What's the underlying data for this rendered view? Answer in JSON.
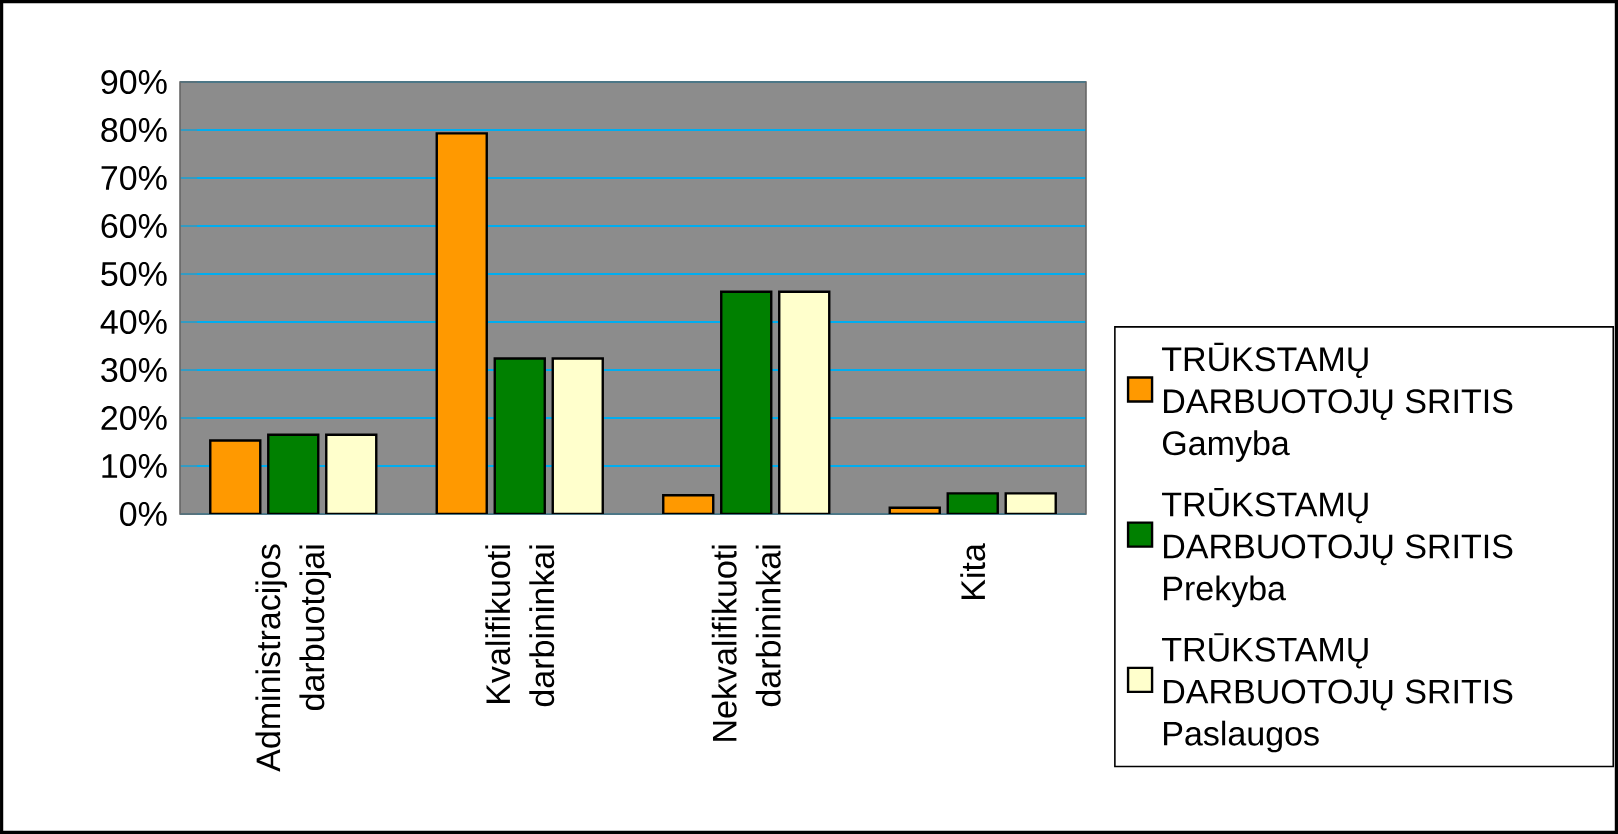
{
  "chart_data": {
    "type": "bar",
    "categories": [
      "Administracijos darbuotojai",
      "Kvalifikuoti darbininkai",
      "Nekvalifikuoti darbininkai",
      "Kita"
    ],
    "series": [
      {
        "name": "TRŪKSTAMŲ DARBUOTOJŲ SRITIS Gamyba",
        "color": "#ff9900",
        "values": [
          15.3,
          79.3,
          3.9,
          1.3
        ]
      },
      {
        "name": "TRŪKSTAMŲ DARBUOTOJŲ SRITIS Prekyba",
        "color": "#008000",
        "values": [
          16.5,
          32.4,
          46.3,
          4.3
        ]
      },
      {
        "name": "TRŪKSTAMŲ DARBUOTOJŲ SRITIS Paslaugos",
        "color": "#ffffcc",
        "values": [
          16.5,
          32.4,
          46.3,
          4.3
        ]
      }
    ],
    "ylim": [
      0,
      90
    ],
    "yticks": [
      {
        "value": 0,
        "label": "0%"
      },
      {
        "value": 10,
        "label": "10%"
      },
      {
        "value": 20,
        "label": "20%"
      },
      {
        "value": 30,
        "label": "30%"
      },
      {
        "value": 40,
        "label": "40%"
      },
      {
        "value": 50,
        "label": "50%"
      },
      {
        "value": 60,
        "label": "60%"
      },
      {
        "value": 70,
        "label": "70%"
      },
      {
        "value": 80,
        "label": "80%"
      },
      {
        "value": 90,
        "label": "90%"
      }
    ],
    "grid": "y",
    "legend": "right"
  }
}
